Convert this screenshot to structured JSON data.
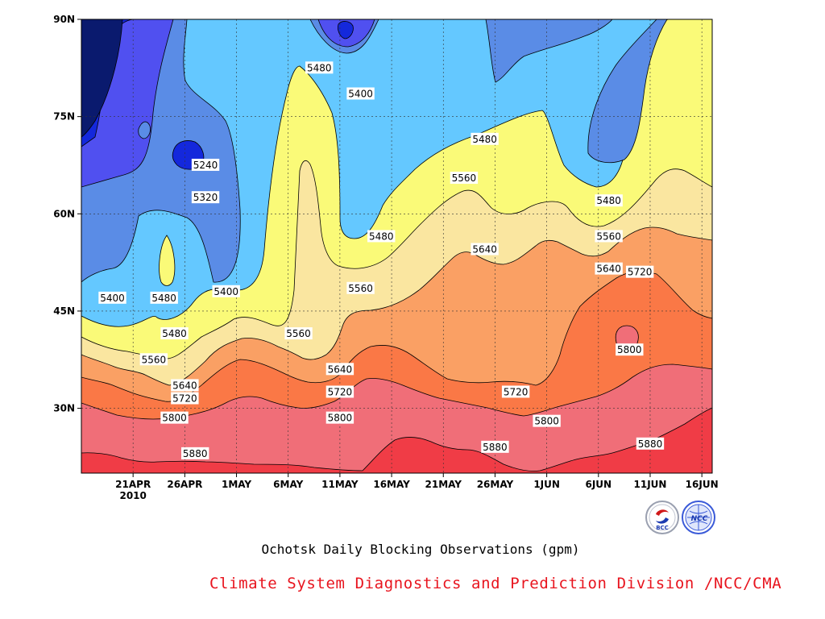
{
  "chart_data": {
    "type": "heatmap",
    "subtype": "filled-contour (time-latitude Hovmoller)",
    "title": "Ochotsk Daily Blocking Observations (gpm)",
    "x_axis": {
      "ticks": [
        "21APR",
        "26APR",
        "1MAY",
        "6MAY",
        "11MAY",
        "16MAY",
        "21MAY",
        "26MAY",
        "1JUN",
        "6JUN",
        "11JUN",
        "16JUN"
      ],
      "year_label": "2010",
      "range": [
        "2010-04-16",
        "2010-06-16"
      ]
    },
    "y_axis": {
      "ticks": [
        "30N",
        "45N",
        "60N",
        "75N",
        "90N"
      ],
      "tick_values": [
        30,
        45,
        60,
        75,
        90
      ],
      "range": [
        20,
        90
      ]
    },
    "grid": true,
    "contour_levels": [
      5240,
      5320,
      5400,
      5480,
      5560,
      5640,
      5720,
      5800,
      5880
    ],
    "fill_colors": [
      "#0a1a6e",
      "#1428dc",
      "#5050f0",
      "#5a8ce6",
      "#64c8ff",
      "#fafa78",
      "#fae6a0",
      "#faa064",
      "#fa7846",
      "#f06e78",
      "#f03c46"
    ],
    "contour_labels": [
      {
        "text": "5480",
        "date": "2010-05-09",
        "lat": 82.5
      },
      {
        "text": "5400",
        "date": "2010-05-13",
        "lat": 78.5
      },
      {
        "text": "5480",
        "date": "2010-05-25",
        "lat": 71.5
      },
      {
        "text": "5240",
        "date": "2010-04-28",
        "lat": 67.5
      },
      {
        "text": "5320",
        "date": "2010-04-28",
        "lat": 62.5
      },
      {
        "text": "5560",
        "date": "2010-05-23",
        "lat": 65.5
      },
      {
        "text": "5480",
        "date": "2010-06-06",
        "lat": 62.0
      },
      {
        "text": "5480",
        "date": "2010-05-15",
        "lat": 56.5
      },
      {
        "text": "5560",
        "date": "2010-06-06",
        "lat": 56.5
      },
      {
        "text": "5640",
        "date": "2010-05-25",
        "lat": 54.5
      },
      {
        "text": "5640",
        "date": "2010-06-06",
        "lat": 51.5
      },
      {
        "text": "5720",
        "date": "2010-06-09",
        "lat": 51.0
      },
      {
        "text": "5560",
        "date": "2010-05-13",
        "lat": 48.5
      },
      {
        "text": "5400",
        "date": "2010-04-19",
        "lat": 47.0
      },
      {
        "text": "5480",
        "date": "2010-04-24",
        "lat": 47.0
      },
      {
        "text": "5400",
        "date": "2010-04-30",
        "lat": 48.0
      },
      {
        "text": "5480",
        "date": "2010-04-25",
        "lat": 41.5
      },
      {
        "text": "5560",
        "date": "2010-05-07",
        "lat": 41.5
      },
      {
        "text": "5560",
        "date": "2010-04-23",
        "lat": 37.5
      },
      {
        "text": "5800",
        "date": "2010-06-08",
        "lat": 39.0
      },
      {
        "text": "5640",
        "date": "2010-05-11",
        "lat": 36.0
      },
      {
        "text": "5640",
        "date": "2010-04-26",
        "lat": 33.5
      },
      {
        "text": "5720",
        "date": "2010-05-11",
        "lat": 32.5
      },
      {
        "text": "5720",
        "date": "2010-05-28",
        "lat": 32.5
      },
      {
        "text": "5720",
        "date": "2010-04-26",
        "lat": 31.5
      },
      {
        "text": "5800",
        "date": "2010-04-25",
        "lat": 28.5
      },
      {
        "text": "5800",
        "date": "2010-05-11",
        "lat": 28.5
      },
      {
        "text": "5800",
        "date": "2010-05-31",
        "lat": 28.0
      },
      {
        "text": "5880",
        "date": "2010-05-26",
        "lat": 24.0
      },
      {
        "text": "5880",
        "date": "2010-04-27",
        "lat": 23.0
      },
      {
        "text": "5880",
        "date": "2010-06-10",
        "lat": 24.5
      }
    ]
  },
  "credit": "Climate System Diagnostics and Prediction Division /NCC/CMA",
  "logos": {
    "bcc": "BCC",
    "ncc": "NCC"
  }
}
